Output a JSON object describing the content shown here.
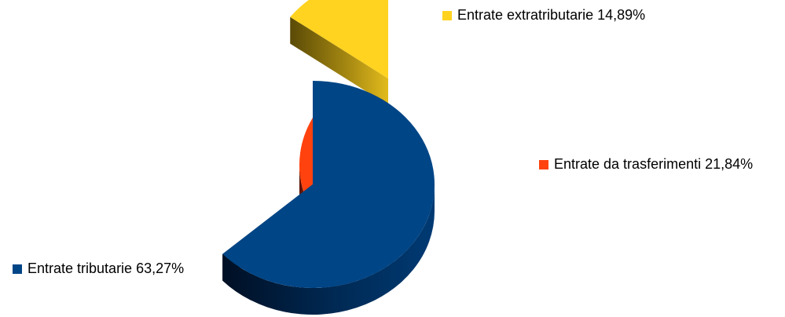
{
  "chart_data": {
    "type": "pie",
    "style": "3d-exploded",
    "slices": [
      {
        "label": "Entrate tributarie",
        "value": 63.27,
        "value_label": "63,27%",
        "color": "#004586"
      },
      {
        "label": "Entrate da trasferimenti",
        "value": 21.84,
        "value_label": "21,84%",
        "color": "#FF420E"
      },
      {
        "label": "Entrate extratributarie",
        "value": 14.89,
        "value_label": "14,89%",
        "color": "#FFD320"
      }
    ]
  }
}
